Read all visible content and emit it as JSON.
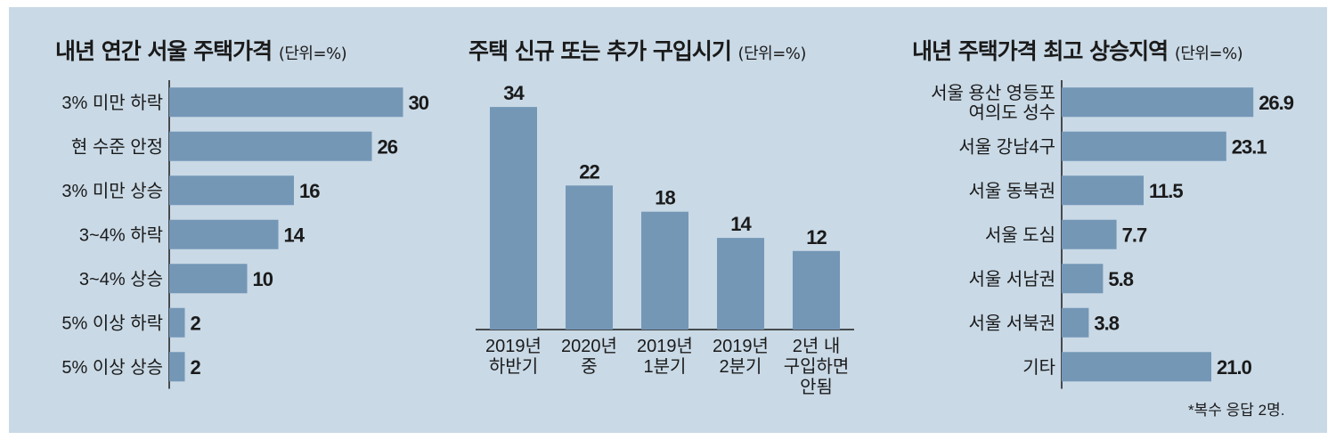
{
  "colors": {
    "background": "#c9d9e6",
    "bar": "#7497b6",
    "axis": "#1a1a1a",
    "text": "#1a1a1a"
  },
  "charts": [
    {
      "title": "내년 연간 서울 주택가격",
      "unit": "(단위=%)"
    },
    {
      "title": "주택 신규 또는 추가 구입시기",
      "unit": "(단위=%)"
    },
    {
      "title": "내년 주택가격 최고 상승지역",
      "unit": "(단위=%)"
    }
  ],
  "footnote": "*복수 응답 2명.",
  "chart_data": [
    {
      "type": "bar",
      "orientation": "horizontal",
      "title": "내년 연간 서울 주택가격 (단위=%)",
      "categories": [
        "3% 미만 하락",
        "현 수준 안정",
        "3% 미만 상승",
        "3~4% 하락",
        "3~4% 상승",
        "5% 이상 하락",
        "5% 이상 상승"
      ],
      "values": [
        30,
        26,
        16,
        14,
        10,
        2,
        2
      ],
      "value_labels": [
        "30",
        "26",
        "16",
        "14",
        "10",
        "2",
        "2"
      ]
    },
    {
      "type": "bar",
      "orientation": "vertical",
      "title": "주택 신규 또는 추가 구입시기 (단위=%)",
      "categories": [
        [
          "2019년",
          "하반기"
        ],
        [
          "2020년",
          "중"
        ],
        [
          "2019년",
          "1분기"
        ],
        [
          "2019년",
          "2분기"
        ],
        [
          "2년 내",
          "구입하면",
          "안됨"
        ]
      ],
      "values": [
        34,
        22,
        18,
        14,
        12
      ],
      "value_labels": [
        "34",
        "22",
        "18",
        "14",
        "12"
      ]
    },
    {
      "type": "bar",
      "orientation": "horizontal",
      "title": "내년 주택가격 최고 상승지역 (단위=%)",
      "categories": [
        [
          "서울 용산 영등포",
          "여의도 성수"
        ],
        [
          "서울 강남4구"
        ],
        [
          "서울 동북권"
        ],
        [
          "서울 도심"
        ],
        [
          "서울 서남권"
        ],
        [
          "서울 서북권"
        ],
        [
          "기타"
        ]
      ],
      "values": [
        26.9,
        23.1,
        11.5,
        7.7,
        5.8,
        3.8,
        21.0
      ],
      "value_labels": [
        "26.9",
        "23.1",
        "11.5",
        "7.7",
        "5.8",
        "3.8",
        "21.0"
      ]
    }
  ]
}
